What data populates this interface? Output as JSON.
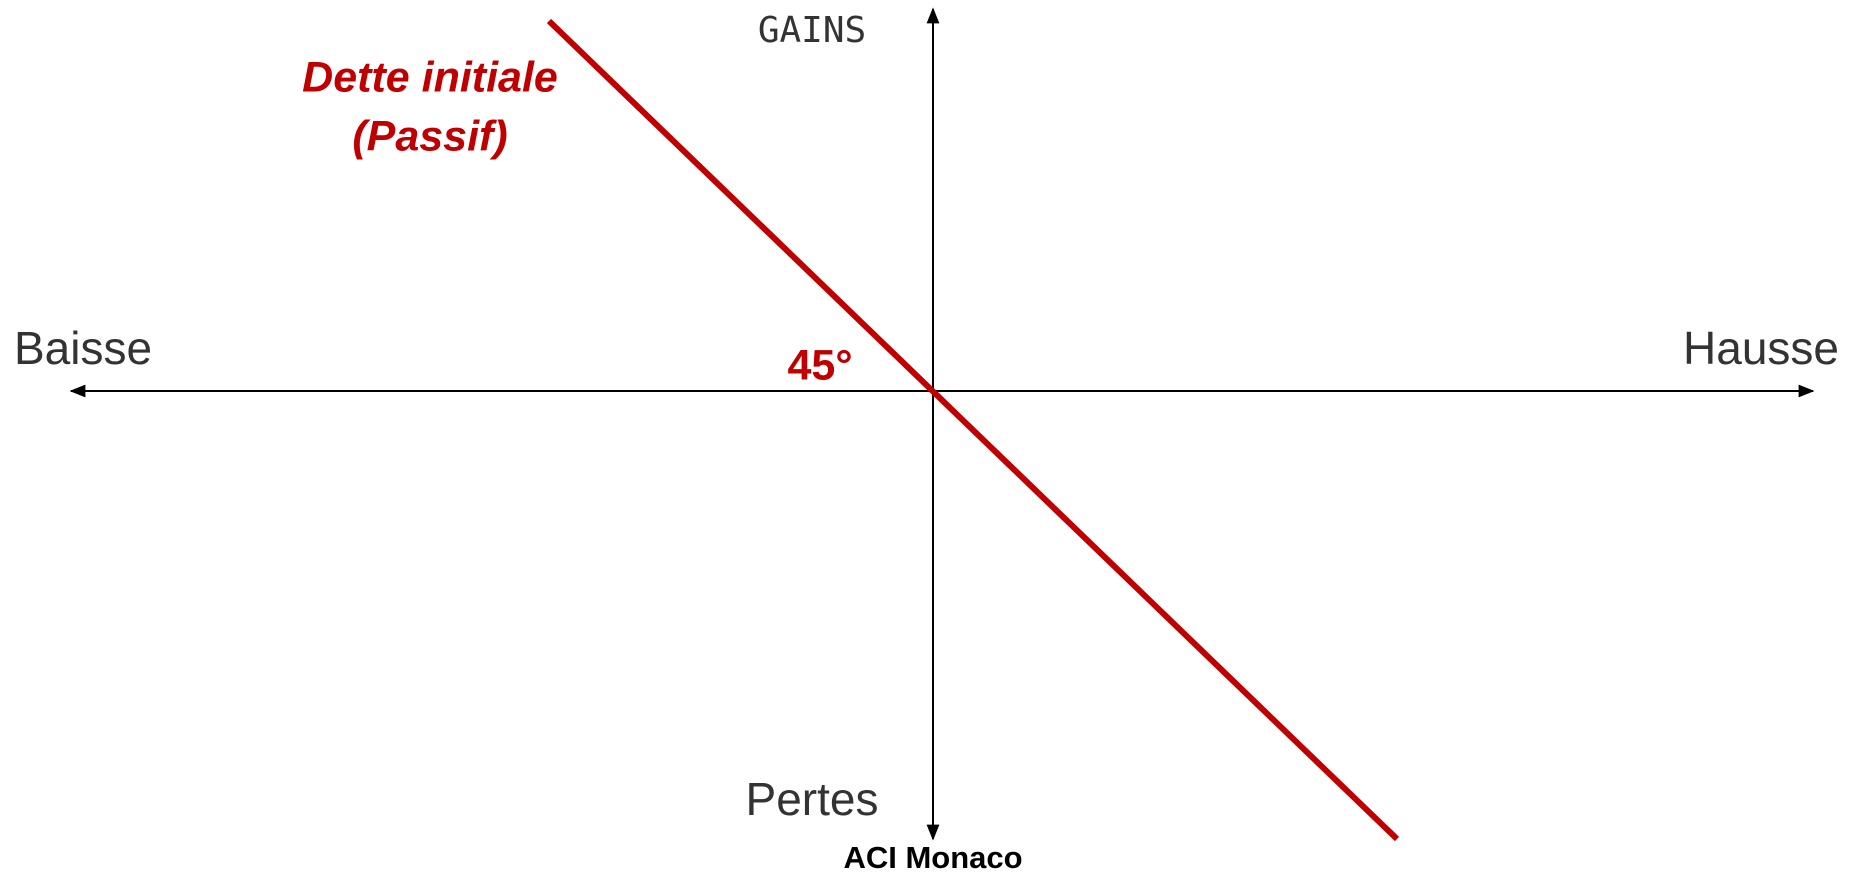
{
  "axes": {
    "top": "GAINS",
    "bottom": "Pertes",
    "left": "Baisse",
    "right": "Hausse"
  },
  "line": {
    "label": [
      "Dette initiale",
      "(Passif)"
    ],
    "angle": "45°"
  },
  "footer": "ACI Monaco"
}
